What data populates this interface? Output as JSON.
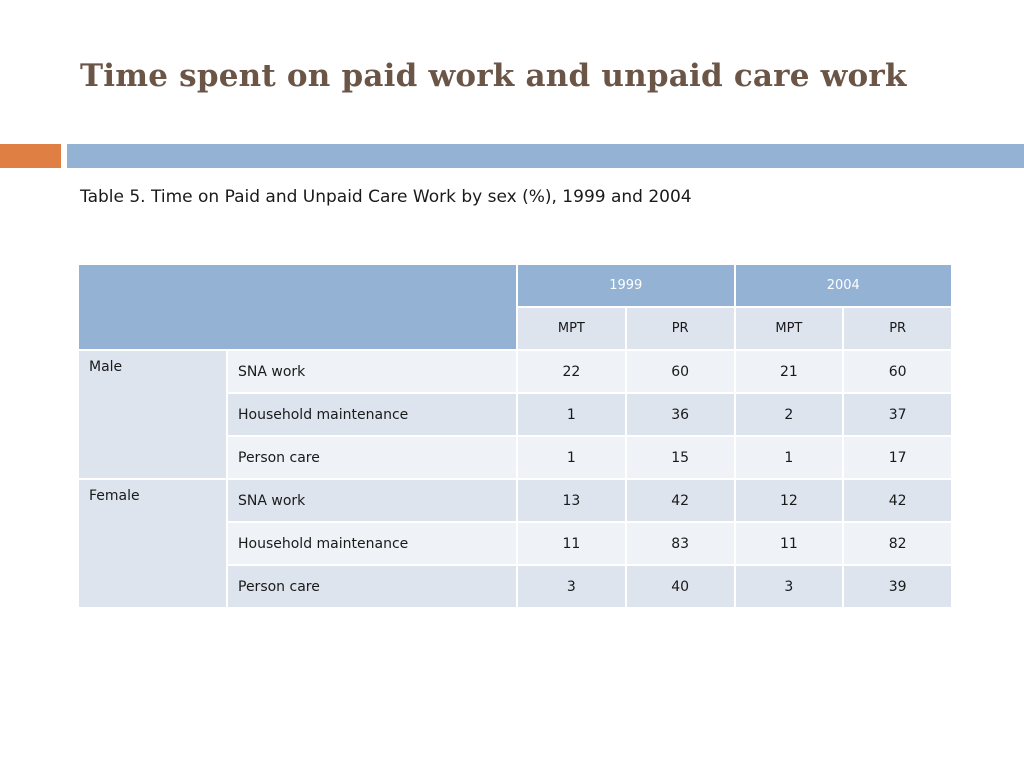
{
  "slide": {
    "title": "Time spent on paid work and unpaid care work",
    "subtitle": "Table 5. Time on Paid and Unpaid Care Work by sex (%), 1999 and 2004"
  },
  "colors": {
    "title": "#6a5547",
    "accent_orange": "#e07f43",
    "band_blue": "#93b2d4",
    "cell_dark": "#dde4ee",
    "cell_light": "#eff2f7"
  },
  "table": {
    "years": [
      "1999",
      "2004"
    ],
    "subheaders": [
      "MPT",
      "PR",
      "MPT",
      "PR"
    ],
    "groups": [
      {
        "sex": "Male",
        "rows": [
          {
            "activity": "SNA work",
            "values": [
              "22",
              "60",
              "21",
              "60"
            ]
          },
          {
            "activity": "Household maintenance",
            "values": [
              "1",
              "36",
              "2",
              "37"
            ]
          },
          {
            "activity": "Person care",
            "values": [
              "1",
              "15",
              "1",
              "17"
            ]
          }
        ]
      },
      {
        "sex": "Female",
        "rows": [
          {
            "activity": "SNA work",
            "values": [
              "13",
              "42",
              "12",
              "42"
            ]
          },
          {
            "activity": "Household maintenance",
            "values": [
              "11",
              "83",
              "11",
              "82"
            ]
          },
          {
            "activity": "Person care",
            "values": [
              "3",
              "40",
              "3",
              "39"
            ]
          }
        ]
      }
    ]
  }
}
